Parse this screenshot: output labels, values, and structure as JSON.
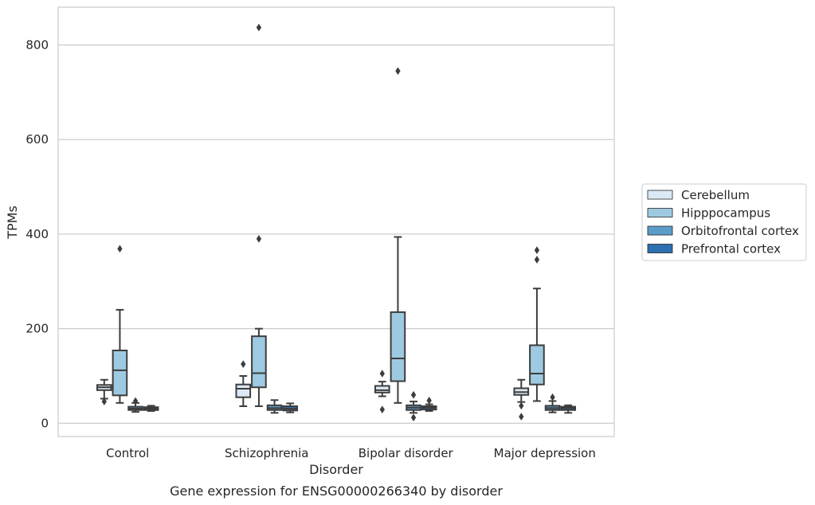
{
  "chart_data": {
    "type": "box",
    "title": "",
    "caption": "Gene expression for ENSG00000266340 by disorder",
    "xlabel": "Disorder",
    "ylabel": "TPMs",
    "ylim": [
      -28,
      880
    ],
    "yticks": [
      0,
      200,
      400,
      600,
      800
    ],
    "grid": "horizontal",
    "legend_position": "right",
    "categories": [
      "Control",
      "Schizophrenia",
      "Bipolar disorder",
      "Major depression"
    ],
    "series": [
      {
        "name": "Cerebellum",
        "color": "#dbe9f6",
        "boxes": [
          {
            "whisker_low": 52,
            "q1": 70,
            "median": 76,
            "q3": 81,
            "whisker_high": 92,
            "outliers": [
              46
            ]
          },
          {
            "whisker_low": 36,
            "q1": 55,
            "median": 73,
            "q3": 82,
            "whisker_high": 100,
            "outliers": [
              125
            ]
          },
          {
            "whisker_low": 57,
            "q1": 65,
            "median": 70,
            "q3": 79,
            "whisker_high": 88,
            "outliers": [
              105,
              29
            ]
          },
          {
            "whisker_low": 45,
            "q1": 60,
            "median": 66,
            "q3": 74,
            "whisker_high": 92,
            "outliers": [
              37,
              14
            ]
          }
        ]
      },
      {
        "name": "Hipppocampus",
        "color": "#9ecae1",
        "boxes": [
          {
            "whisker_low": 43,
            "q1": 59,
            "median": 112,
            "q3": 154,
            "whisker_high": 240,
            "outliers": [
              369
            ]
          },
          {
            "whisker_low": 36,
            "q1": 76,
            "median": 106,
            "q3": 184,
            "whisker_high": 200,
            "outliers": [
              390,
              837
            ]
          },
          {
            "whisker_low": 43,
            "q1": 89,
            "median": 137,
            "q3": 235,
            "whisker_high": 394,
            "outliers": [
              745
            ]
          },
          {
            "whisker_low": 47,
            "q1": 82,
            "median": 105,
            "q3": 165,
            "whisker_high": 285,
            "outliers": [
              346,
              366
            ]
          }
        ]
      },
      {
        "name": "Orbitofrontal cortex",
        "color": "#5c9cc9",
        "boxes": [
          {
            "whisker_low": 24,
            "q1": 28,
            "median": 31,
            "q3": 35,
            "whisker_high": 43,
            "outliers": [
              47
            ]
          },
          {
            "whisker_low": 22,
            "q1": 28,
            "median": 32,
            "q3": 38,
            "whisker_high": 49,
            "outliers": []
          },
          {
            "whisker_low": 22,
            "q1": 28,
            "median": 33,
            "q3": 38,
            "whisker_high": 46,
            "outliers": [
              60,
              12
            ]
          },
          {
            "whisker_low": 23,
            "q1": 28,
            "median": 32,
            "q3": 37,
            "whisker_high": 47,
            "outliers": [
              55
            ]
          }
        ]
      },
      {
        "name": "Prefrontal cortex",
        "color": "#2d6fb0",
        "boxes": [
          {
            "whisker_low": 26,
            "q1": 28,
            "median": 31,
            "q3": 34,
            "whisker_high": 37,
            "outliers": []
          },
          {
            "whisker_low": 23,
            "q1": 27,
            "median": 31,
            "q3": 36,
            "whisker_high": 42,
            "outliers": []
          },
          {
            "whisker_low": 26,
            "q1": 29,
            "median": 33,
            "q3": 36,
            "whisker_high": 40,
            "outliers": [
              48
            ]
          },
          {
            "whisker_low": 22,
            "q1": 28,
            "median": 32,
            "q3": 35,
            "whisker_high": 38,
            "outliers": []
          }
        ]
      }
    ]
  }
}
